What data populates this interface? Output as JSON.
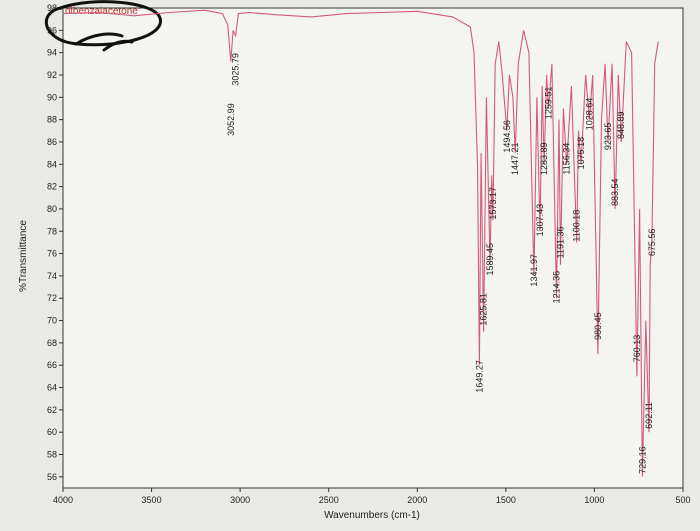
{
  "chart_data": {
    "type": "line",
    "title": "dibenzalacetone",
    "xlabel": "Wavenumbers (cm-1)",
    "ylabel": "%Transmittance",
    "xlim": [
      4000,
      500
    ],
    "ylim": [
      55,
      98
    ],
    "x_ticks": [
      4000,
      3500,
      3000,
      2500,
      2000,
      1500,
      1000,
      500
    ],
    "y_ticks": [
      56,
      58,
      60,
      62,
      64,
      66,
      68,
      70,
      72,
      74,
      76,
      78,
      80,
      82,
      84,
      86,
      88,
      90,
      92,
      94,
      96,
      98
    ],
    "line_color": "#d45a7a",
    "series": [
      {
        "x": [
          4000,
          3800,
          3600,
          3400,
          3200,
          3100,
          3070,
          3052.99,
          3040,
          3025.79,
          3010,
          2950,
          2800,
          2600,
          2400,
          2200,
          2000,
          1800,
          1700,
          1680,
          1660,
          1649.27,
          1640,
          1625.81,
          1610,
          1589.45,
          1580,
          1573.17,
          1560,
          1540,
          1520,
          1494.56,
          1480,
          1460,
          1447.21,
          1430,
          1400,
          1370,
          1341.97,
          1325,
          1307.43,
          1295,
          1283.89,
          1270,
          1259.51,
          1240,
          1214.36,
          1200,
          1191.36,
          1175,
          1156.34,
          1130,
          1100.18,
          1090,
          1075.18,
          1050,
          1028.64,
          1010,
          980.45,
          960,
          940,
          923.65,
          900,
          883.54,
          865,
          848.89,
          820,
          790,
          760.13,
          745,
          729.16,
          710,
          692.11,
          685,
          675.56,
          660,
          640
        ],
        "y": [
          97.5,
          97.6,
          97.3,
          97.6,
          97.8,
          97.5,
          96.5,
          93.2,
          96.0,
          95.5,
          97.5,
          97.6,
          97.4,
          97.2,
          97.5,
          97.6,
          97.7,
          97.2,
          96.3,
          94.0,
          84.0,
          66.0,
          85.0,
          69.0,
          90.0,
          75.0,
          83.0,
          79.0,
          93.0,
          95.0,
          92.0,
          87.0,
          92.0,
          90.0,
          85.0,
          93.0,
          96.0,
          94.0,
          74.0,
          90.0,
          78.0,
          91.0,
          84.0,
          92.0,
          89.0,
          93.0,
          72.0,
          88.0,
          75.0,
          89.0,
          84.0,
          91.0,
          77.0,
          87.0,
          84.0,
          92.0,
          88.0,
          92.0,
          67.0,
          88.0,
          93.0,
          86.0,
          93.0,
          80.0,
          92.0,
          86.0,
          95.0,
          94.0,
          65.0,
          80.0,
          56.0,
          70.0,
          60.0,
          75.0,
          77.0,
          93.0,
          95.0
        ]
      }
    ],
    "peak_labels": [
      {
        "wavenumber": 3052.99,
        "text": "3052.99",
        "y": 88
      },
      {
        "wavenumber": 3025.79,
        "text": "3025.79",
        "y": 92.5
      },
      {
        "wavenumber": 1649.27,
        "text": "1649.27",
        "y": 65
      },
      {
        "wavenumber": 1625.81,
        "text": "1625.81",
        "y": 71
      },
      {
        "wavenumber": 1589.45,
        "text": "1589.45",
        "y": 75.5
      },
      {
        "wavenumber": 1573.17,
        "text": "1573.17",
        "y": 80.5
      },
      {
        "wavenumber": 1494.56,
        "text": "1494.56",
        "y": 86.5
      },
      {
        "wavenumber": 1447.21,
        "text": "1447.21",
        "y": 84.5
      },
      {
        "wavenumber": 1341.97,
        "text": "1341.97",
        "y": 74.5
      },
      {
        "wavenumber": 1307.43,
        "text": "1307.43",
        "y": 79
      },
      {
        "wavenumber": 1283.89,
        "text": "1283.89",
        "y": 84.5
      },
      {
        "wavenumber": 1259.51,
        "text": "1259.51",
        "y": 89.5
      },
      {
        "wavenumber": 1214.36,
        "text": "1214.36",
        "y": 73
      },
      {
        "wavenumber": 1191.36,
        "text": "1191.36",
        "y": 77
      },
      {
        "wavenumber": 1156.34,
        "text": "1156.34",
        "y": 84.5
      },
      {
        "wavenumber": 1100.18,
        "text": "1100.18",
        "y": 78.5
      },
      {
        "wavenumber": 1075.18,
        "text": "1075.18",
        "y": 85
      },
      {
        "wavenumber": 1028.64,
        "text": "1028.64",
        "y": 88.5
      },
      {
        "wavenumber": 980.45,
        "text": "980.45",
        "y": 69.5
      },
      {
        "wavenumber": 923.65,
        "text": "923.65",
        "y": 86.5
      },
      {
        "wavenumber": 883.54,
        "text": "883.54",
        "y": 81.5
      },
      {
        "wavenumber": 848.89,
        "text": "848.89",
        "y": 87.5
      },
      {
        "wavenumber": 760.13,
        "text": "760.13",
        "y": 67.5
      },
      {
        "wavenumber": 729.16,
        "text": "729.16",
        "y": 57.5
      },
      {
        "wavenumber": 692.11,
        "text": "692.11",
        "y": 61.5
      },
      {
        "wavenumber": 675.56,
        "text": "675.56",
        "y": 77
      }
    ]
  }
}
